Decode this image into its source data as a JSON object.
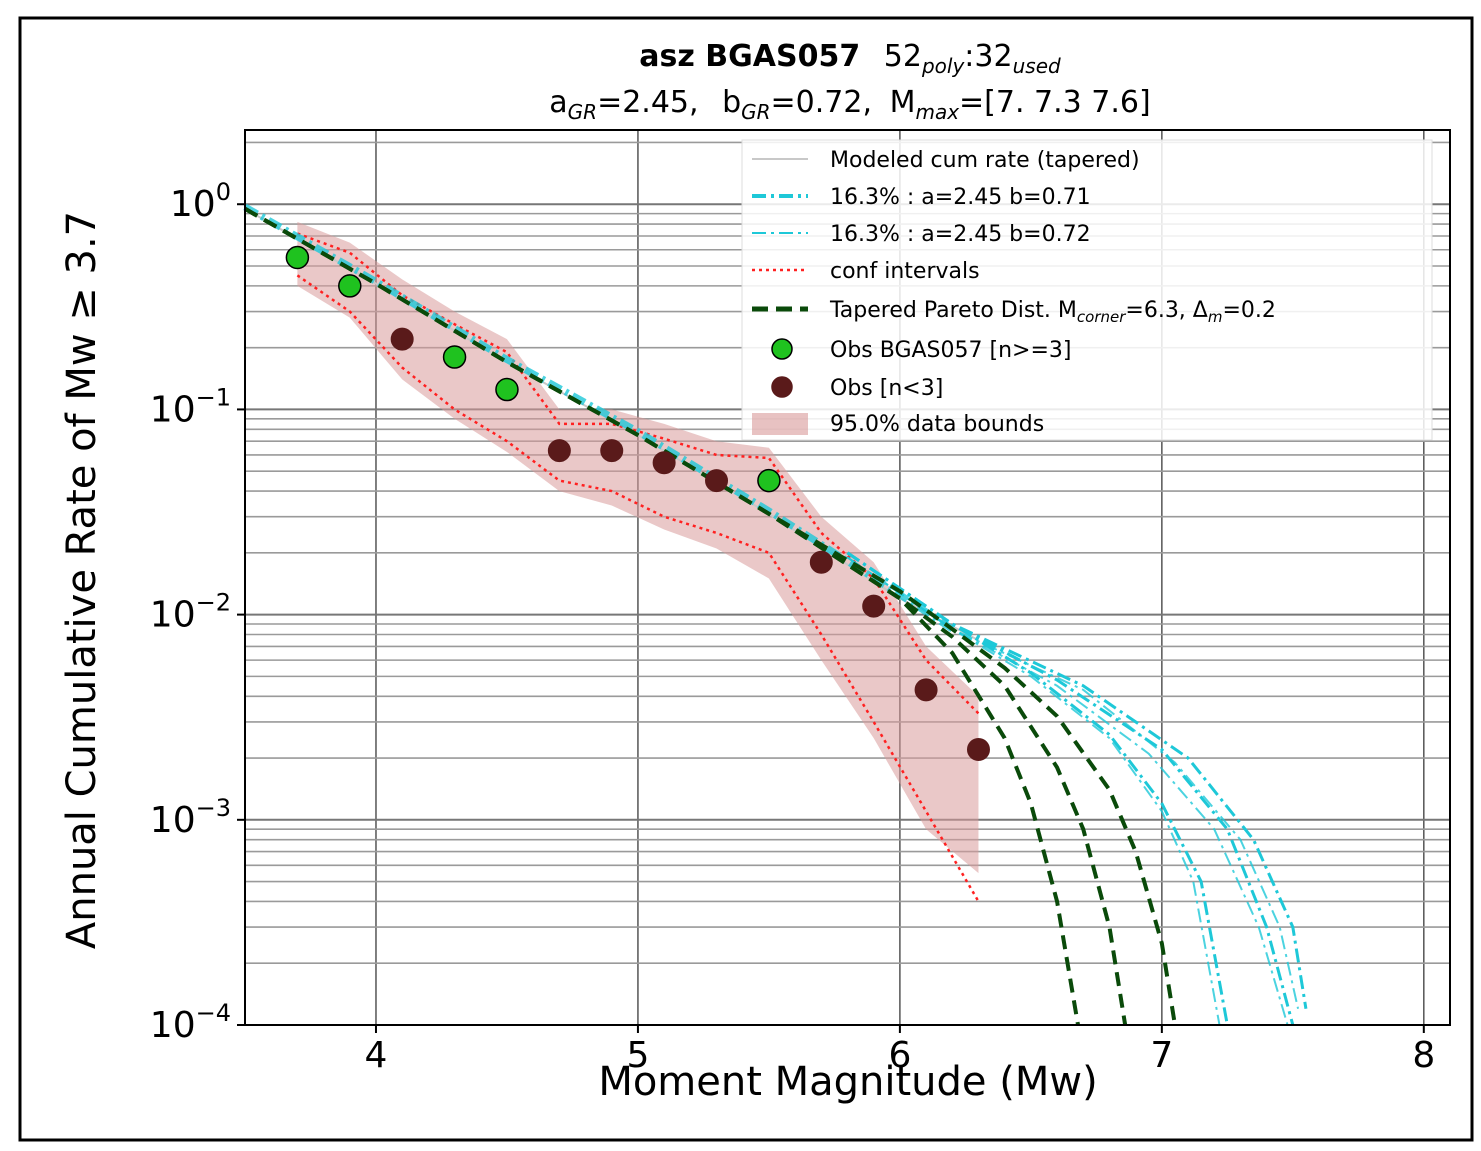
{
  "chart_data": {
    "type": "line",
    "title_main": "asz BGAS057",
    "title_counts": {
      "poly_count": "52",
      "poly_sub": "poly",
      "used_count": "32",
      "used_sub": "used"
    },
    "subtitle_parts": {
      "a_sym": "a",
      "a_sub": "GR",
      "a_val": "=2.45,",
      "b_sym": "b",
      "b_sub": "GR",
      "b_val": "=0.72,",
      "m_sym": "M",
      "m_sub": "max",
      "m_val": "=[7.  7.3 7.6]"
    },
    "xlabel": "Moment Magnitude (Mw)",
    "ylabel": "Annual Cumulative Rate of Mw  ≥  3.7",
    "xlim": [
      3.5,
      8.1
    ],
    "ylim": [
      0.0001,
      2.3
    ],
    "yscale": "log",
    "x_ticks": [
      4,
      5,
      6,
      7,
      8
    ],
    "x_tick_labels": [
      "4",
      "5",
      "6",
      "7",
      "8"
    ],
    "y_ticks": [
      1,
      0.1,
      0.01,
      0.001,
      0.0001
    ],
    "y_tick_labels": [
      {
        "base": "10",
        "exp": "0"
      },
      {
        "base": "10",
        "exp": "−1"
      },
      {
        "base": "10",
        "exp": "−2"
      },
      {
        "base": "10",
        "exp": "−3"
      },
      {
        "base": "10",
        "exp": "−4"
      }
    ],
    "grid": true,
    "legend_position": "top-right",
    "legend": [
      {
        "label": "Modeled cum rate (tapered)",
        "style": "thin-gray"
      },
      {
        "label": "16.3% : a=2.45 b=0.71",
        "style": "cyan-dashdot"
      },
      {
        "label": "16.3% : a=2.45 b=0.72",
        "style": "cyan-dashdot-light"
      },
      {
        "label": "conf intervals",
        "style": "red-dotted"
      },
      {
        "label_main": "Tapered Pareto Dist. M",
        "label_sub": "corner",
        "label_mid": "=6.3, Δ",
        "label_sub2": "m",
        "label_end": "=0.2",
        "style": "green-dashed"
      },
      {
        "label": "Obs BGAS057 [n>=3]",
        "style": "green-marker"
      },
      {
        "label": "Obs [n<3]",
        "style": "brown-marker"
      },
      {
        "label": "95.0% data bounds",
        "style": "pink-fill"
      }
    ],
    "obs_n_ge_3": {
      "x": [
        3.7,
        3.9,
        4.3,
        4.5,
        5.5
      ],
      "y": [
        0.55,
        0.4,
        0.18,
        0.125,
        0.045
      ]
    },
    "obs_n_lt_3": {
      "x": [
        4.1,
        4.7,
        4.9,
        5.1,
        5.3,
        5.7,
        5.9,
        6.1,
        6.3
      ],
      "y": [
        0.22,
        0.063,
        0.063,
        0.055,
        0.045,
        0.018,
        0.011,
        0.0043,
        0.0022
      ]
    },
    "data_bounds_95": {
      "x": [
        3.7,
        3.9,
        4.1,
        4.3,
        4.5,
        4.7,
        4.9,
        5.1,
        5.3,
        5.5,
        5.7,
        5.9,
        6.1,
        6.3
      ],
      "upper": [
        0.82,
        0.65,
        0.43,
        0.3,
        0.22,
        0.1,
        0.1,
        0.085,
        0.07,
        0.065,
        0.03,
        0.018,
        0.007,
        0.004
      ],
      "lower": [
        0.4,
        0.28,
        0.14,
        0.09,
        0.062,
        0.04,
        0.034,
        0.026,
        0.021,
        0.015,
        0.006,
        0.0025,
        0.0009,
        0.00055
      ]
    },
    "conf_intervals": {
      "x": [
        3.7,
        3.9,
        4.1,
        4.3,
        4.5,
        4.7,
        4.9,
        5.1,
        5.3,
        5.5,
        5.7,
        5.9,
        6.1,
        6.3
      ],
      "upper": [
        0.72,
        0.58,
        0.36,
        0.26,
        0.19,
        0.085,
        0.085,
        0.072,
        0.06,
        0.058,
        0.025,
        0.015,
        0.006,
        0.0033
      ],
      "lower": [
        0.45,
        0.3,
        0.16,
        0.1,
        0.07,
        0.045,
        0.04,
        0.03,
        0.025,
        0.02,
        0.008,
        0.003,
        0.0011,
        0.0004
      ]
    },
    "tapered_pareto_curves": [
      {
        "mmax": 7.0,
        "x": [
          3.5,
          4.0,
          4.5,
          5.0,
          5.5,
          6.0,
          6.2,
          6.4,
          6.5,
          6.6,
          6.68
        ],
        "y": [
          0.95,
          0.41,
          0.17,
          0.075,
          0.031,
          0.012,
          0.0065,
          0.0025,
          0.0012,
          0.0004,
          0.0001
        ]
      },
      {
        "mmax": 7.3,
        "x": [
          3.5,
          4.0,
          4.5,
          5.0,
          5.5,
          6.0,
          6.2,
          6.4,
          6.6,
          6.7,
          6.8,
          6.86
        ],
        "y": [
          0.95,
          0.41,
          0.17,
          0.075,
          0.031,
          0.012,
          0.0078,
          0.0045,
          0.0018,
          0.0009,
          0.0003,
          0.0001
        ]
      },
      {
        "mmax": 7.6,
        "x": [
          3.5,
          4.0,
          4.5,
          5.0,
          5.5,
          6.0,
          6.2,
          6.4,
          6.6,
          6.8,
          6.9,
          7.0,
          7.05
        ],
        "y": [
          0.95,
          0.41,
          0.17,
          0.075,
          0.031,
          0.013,
          0.0085,
          0.0055,
          0.0032,
          0.0014,
          0.0007,
          0.00025,
          0.0001
        ]
      }
    ],
    "gr_curves_b071": [
      {
        "x": [
          5.8,
          6.2,
          6.5,
          6.8,
          7.0,
          7.15,
          7.25
        ],
        "y": [
          0.02,
          0.009,
          0.0052,
          0.0026,
          0.0012,
          0.0005,
          0.0001
        ]
      },
      {
        "x": [
          5.8,
          6.2,
          6.6,
          7.0,
          7.25,
          7.4,
          7.5
        ],
        "y": [
          0.02,
          0.009,
          0.0048,
          0.0022,
          0.0009,
          0.0003,
          0.0001
        ]
      },
      {
        "x": [
          5.8,
          6.2,
          6.7,
          7.1,
          7.35,
          7.5,
          7.55
        ],
        "y": [
          0.02,
          0.009,
          0.0045,
          0.002,
          0.0008,
          0.0003,
          0.00012
        ]
      }
    ],
    "gr_curves_b072": [
      {
        "x": [
          5.8,
          6.2,
          6.5,
          6.8,
          7.0,
          7.12,
          7.22
        ],
        "y": [
          0.019,
          0.0085,
          0.005,
          0.0025,
          0.0011,
          0.0005,
          0.0001
        ]
      },
      {
        "x": [
          5.8,
          6.2,
          6.6,
          6.95,
          7.2,
          7.37,
          7.48
        ],
        "y": [
          0.019,
          0.0085,
          0.0045,
          0.0021,
          0.0009,
          0.0003,
          0.0001
        ]
      },
      {
        "x": [
          5.8,
          6.2,
          6.7,
          7.05,
          7.3,
          7.45,
          7.52
        ],
        "y": [
          0.019,
          0.0085,
          0.0043,
          0.0019,
          0.0008,
          0.0003,
          0.00012
        ]
      }
    ],
    "colors": {
      "green_marker": "#1fc21f",
      "brown_marker": "#5a1a1a",
      "cyan": "#1ec8d8",
      "red": "#ff2020",
      "dark_green": "#0a4a0a",
      "pink_fill": "#d89a9a",
      "grid": "#9a9a9a",
      "modeled": "#c8c8c8"
    }
  }
}
